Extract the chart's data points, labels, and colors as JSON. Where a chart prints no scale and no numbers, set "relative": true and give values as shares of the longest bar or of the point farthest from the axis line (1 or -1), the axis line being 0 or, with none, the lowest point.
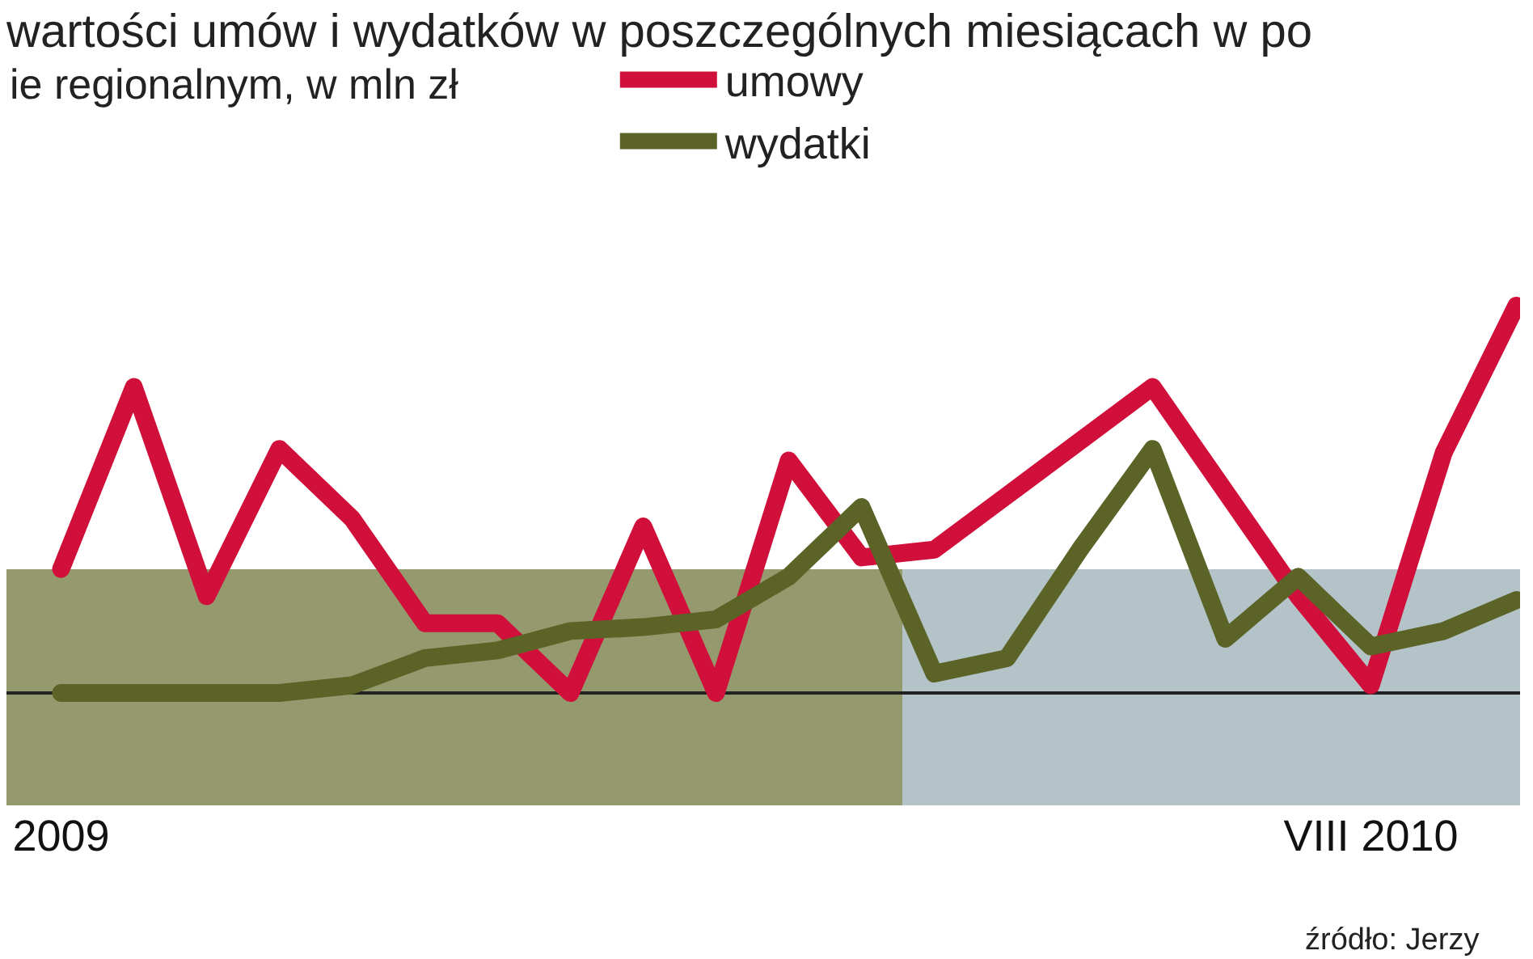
{
  "chart_data": {
    "type": "line",
    "title": "wartości umów i wydatków w poszczególnych miesiącach w po",
    "subtitle": "ie regionalnym, w mln zł",
    "relative": true,
    "legend": "top",
    "categories": [
      "2009",
      null,
      null,
      null,
      null,
      null,
      null,
      null,
      null,
      null,
      null,
      null,
      null,
      null,
      null,
      null,
      null,
      null,
      "VIII 2010",
      null,
      null
    ],
    "series": [
      {
        "name": "umowy",
        "color": "#d0103a",
        "values": [
          0.32,
          0.79,
          0.25,
          0.63,
          0.45,
          0.18,
          0.18,
          0,
          0.43,
          0,
          0.6,
          0.35,
          0.37,
          0.51,
          0.65,
          0.79,
          0.52,
          0.25,
          0.02,
          0.62,
          1
        ]
      },
      {
        "name": "wydatki",
        "color": "#5b6327",
        "values": [
          0,
          0,
          0,
          0,
          0.02,
          0.09,
          0.11,
          0.16,
          0.17,
          0.19,
          0.3,
          0.48,
          0.05,
          0.09,
          0.37,
          0.63,
          0.14,
          0.3,
          0.12,
          0.16,
          0.24
        ]
      }
    ],
    "annotations": [
      "źródło: Jerzy"
    ]
  }
}
